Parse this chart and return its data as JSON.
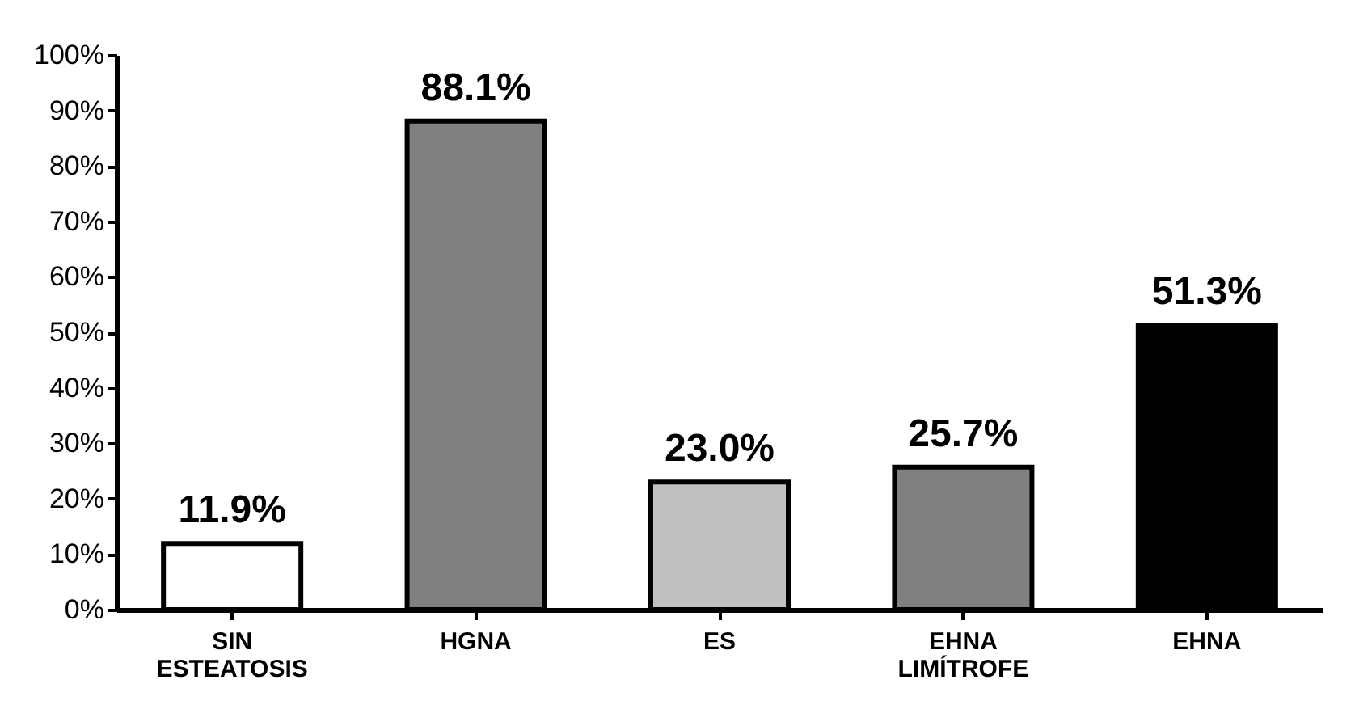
{
  "chart_data": {
    "type": "bar",
    "categories": [
      "SIN ESTEATOSIS",
      "HGNA",
      "ES",
      "EHNA LIMÍTROFE",
      "EHNA"
    ],
    "values": [
      11.9,
      88.1,
      23.0,
      25.7,
      51.3
    ],
    "colors": [
      "#ffffff",
      "#808080",
      "#c0c0c0",
      "#808080",
      "#000000"
    ],
    "value_labels": [
      "11.9%",
      "88.1%",
      "23.0%",
      "25.7%",
      "51.3%"
    ],
    "ylim": [
      0,
      100
    ],
    "yticks": [
      {
        "value": 0,
        "label": "0%"
      },
      {
        "value": 10,
        "label": "10%"
      },
      {
        "value": 20,
        "label": "20%"
      },
      {
        "value": 30,
        "label": "30%"
      },
      {
        "value": 40,
        "label": "40%"
      },
      {
        "value": 50,
        "label": "50%"
      },
      {
        "value": 60,
        "label": "60%"
      },
      {
        "value": 70,
        "label": "70%"
      },
      {
        "value": 80,
        "label": "80%"
      },
      {
        "value": 90,
        "label": "90%"
      },
      {
        "value": 100,
        "label": "100%"
      }
    ],
    "grid": false
  }
}
